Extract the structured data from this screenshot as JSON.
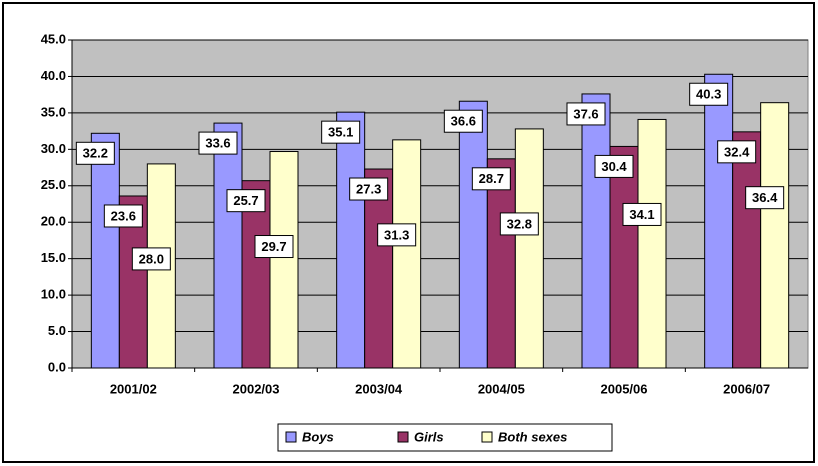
{
  "chart_data": {
    "type": "bar",
    "categories": [
      "2001/02",
      "2002/03",
      "2003/04",
      "2004/05",
      "2005/06",
      "2006/07"
    ],
    "series": [
      {
        "name": "Boys",
        "color": "#9999ff",
        "values": [
          32.2,
          33.6,
          35.1,
          36.6,
          37.6,
          40.3
        ]
      },
      {
        "name": "Girls",
        "color": "#993366",
        "values": [
          23.6,
          25.7,
          27.3,
          28.7,
          30.4,
          32.4
        ]
      },
      {
        "name": "Both sexes",
        "color": "#ffffcc",
        "values": [
          28,
          29.7,
          31.3,
          32.8,
          34.1,
          36.4
        ],
        "value_labels": [
          "28.0",
          "29.7",
          "31.3",
          "32.8",
          "34.1",
          "36.4"
        ]
      }
    ],
    "ylim": [
      0,
      45
    ],
    "yticks": [
      {
        "value": 0,
        "label": "0.0"
      },
      {
        "value": 5,
        "label": "5.0"
      },
      {
        "value": 10,
        "label": "10.0"
      },
      {
        "value": 15,
        "label": "15.0"
      },
      {
        "value": 20,
        "label": "20.0"
      },
      {
        "value": 25,
        "label": "25.0"
      },
      {
        "value": 30,
        "label": "30.0"
      },
      {
        "value": 35,
        "label": "35.0"
      },
      {
        "value": 40,
        "label": "40.0"
      },
      {
        "value": 45,
        "label": "45.0"
      }
    ],
    "grid": true,
    "plot_background": "#c0c0c0",
    "legend": "bottom"
  }
}
